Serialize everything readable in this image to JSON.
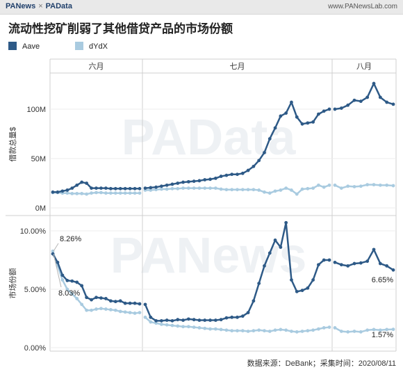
{
  "header": {
    "brand_left": "PANews",
    "brand_sep": "×",
    "brand_right": "PAData",
    "site": "www.PANewsLab.com"
  },
  "title": "流动性挖矿削弱了其他借贷产品的市场份额",
  "legend": [
    {
      "name": "Aave",
      "color": "#2e5a87"
    },
    {
      "name": "dYdX",
      "color": "#a9cbe0"
    }
  ],
  "watermark": "PAData",
  "footer": "数据来源：DeBank；采集时间：2020/08/11",
  "chart_data": [
    {
      "type": "line",
      "ylabel": "借款总量$",
      "yticks": [
        "0M",
        "50M",
        "100M"
      ],
      "ylim": [
        0,
        130
      ],
      "columns": [
        "六月",
        "七月",
        "八月"
      ],
      "series": [
        {
          "name": "Aave",
          "segments": [
            [
              16,
              16,
              17,
              18,
              20,
              23,
              26,
              25,
              20,
              20,
              20,
              20,
              19.5,
              19.5,
              19.5,
              19.5,
              19.5,
              19.5,
              19.5
            ],
            [
              20,
              20.5,
              21,
              22,
              23,
              24,
              25,
              26,
              26.5,
              27,
              27.5,
              28.5,
              29,
              30,
              32,
              33,
              34,
              34,
              35,
              38,
              42,
              48,
              56,
              70,
              81,
              93,
              96,
              107,
              92,
              85,
              86,
              87,
              95,
              98,
              100
            ],
            [
              100,
              101,
              104,
              109,
              108,
              112,
              126,
              112,
              107,
              105
            ]
          ]
        },
        {
          "name": "dYdX",
          "segments": [
            [
              15.5,
              15.5,
              15,
              15,
              14.5,
              14.5,
              14.5,
              14,
              15,
              15.5,
              15.5,
              15,
              15,
              15,
              15,
              15,
              15,
              15,
              15
            ],
            [
              18,
              18,
              18.5,
              19,
              19,
              19.5,
              19.5,
              20,
              20,
              20,
              20,
              20,
              20,
              20,
              19,
              18.5,
              18.5,
              18.5,
              18.5,
              18.5,
              18.5,
              18,
              16,
              15,
              17,
              18,
              20,
              18,
              14,
              19,
              19.5,
              20,
              23,
              21,
              23
            ],
            [
              23,
              20,
              22,
              21.5,
              22,
              23.5,
              23.5,
              23,
              23,
              22.5
            ]
          ]
        }
      ]
    },
    {
      "type": "line",
      "ylabel": "市场份额",
      "yticks": [
        "0.00%",
        "5.00%",
        "10.00%"
      ],
      "ylim": [
        0,
        11.5
      ],
      "columns": [
        "六月",
        "七月",
        "八月"
      ],
      "annotations": [
        "8.26%",
        "8.03%",
        "6.65%",
        "1.57%"
      ],
      "series": [
        {
          "name": "Aave",
          "segments": [
            [
              8.03,
              7.3,
              6.2,
              5.75,
              5.7,
              5.6,
              5.3,
              4.3,
              4.1,
              4.3,
              4.25,
              4.2,
              4.0,
              3.95,
              4.0,
              3.8,
              3.8,
              3.8,
              3.75
            ],
            [
              3.7,
              2.6,
              2.3,
              2.3,
              2.35,
              2.3,
              2.4,
              2.35,
              2.45,
              2.4,
              2.35,
              2.35,
              2.35,
              2.35,
              2.4,
              2.55,
              2.6,
              2.6,
              2.7,
              3.0,
              4.0,
              5.5,
              7.0,
              8.1,
              9.2,
              8.6,
              10.7,
              5.8,
              4.8,
              4.9,
              5.1,
              5.8,
              7.1,
              7.5,
              7.5
            ],
            [
              7.3,
              7.1,
              7.0,
              7.2,
              7.25,
              7.4,
              8.4,
              7.2,
              7.0,
              6.65
            ]
          ]
        },
        {
          "name": "dYdX",
          "segments": [
            [
              8.26,
              7.0,
              5.8,
              5.0,
              4.6,
              4.2,
              3.7,
              3.2,
              3.2,
              3.3,
              3.35,
              3.3,
              3.25,
              3.2,
              3.1,
              3.05,
              3.0,
              2.95,
              3.0
            ],
            [
              2.6,
              2.2,
              2.1,
              2.0,
              1.95,
              1.9,
              1.85,
              1.8,
              1.8,
              1.75,
              1.7,
              1.65,
              1.6,
              1.6,
              1.55,
              1.5,
              1.45,
              1.45,
              1.45,
              1.4,
              1.45,
              1.5,
              1.45,
              1.4,
              1.5,
              1.55,
              1.5,
              1.4,
              1.35,
              1.4,
              1.45,
              1.5,
              1.6,
              1.7,
              1.75
            ],
            [
              1.7,
              1.4,
              1.35,
              1.4,
              1.35,
              1.5,
              1.55,
              1.5,
              1.55,
              1.57
            ]
          ]
        }
      ]
    }
  ]
}
